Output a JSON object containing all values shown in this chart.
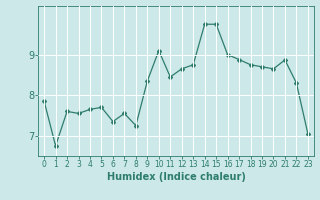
{
  "x": [
    0,
    1,
    2,
    3,
    4,
    5,
    6,
    7,
    8,
    9,
    10,
    11,
    12,
    13,
    14,
    15,
    16,
    17,
    18,
    19,
    20,
    21,
    22,
    23
  ],
  "y": [
    7.85,
    6.75,
    7.6,
    7.55,
    7.65,
    7.7,
    7.35,
    7.55,
    7.25,
    8.35,
    9.1,
    8.45,
    8.65,
    8.75,
    9.75,
    9.75,
    9.0,
    8.88,
    8.75,
    8.7,
    8.65,
    8.87,
    8.3,
    7.05
  ],
  "line_color": "#2e7d6e",
  "marker": "D",
  "marker_size": 2,
  "linewidth": 0.9,
  "xlabel": "Humidex (Indice chaleur)",
  "xlim": [
    -0.5,
    23.5
  ],
  "ylim": [
    6.5,
    10.2
  ],
  "yticks": [
    7,
    8,
    9
  ],
  "xticks": [
    0,
    1,
    2,
    3,
    4,
    5,
    6,
    7,
    8,
    9,
    10,
    11,
    12,
    13,
    14,
    15,
    16,
    17,
    18,
    19,
    20,
    21,
    22,
    23
  ],
  "bg_color": "#cce8e8",
  "grid_color": "#ffffff",
  "tick_color": "#2e7d6e",
  "label_color": "#2e7d6e",
  "xlabel_fontsize": 7,
  "ytick_fontsize": 7,
  "xtick_fontsize": 5.5
}
